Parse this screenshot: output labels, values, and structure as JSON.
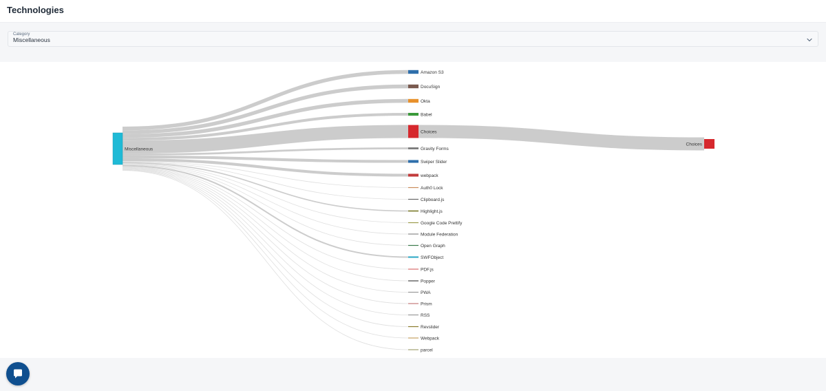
{
  "page": {
    "title": "Technologies"
  },
  "filter": {
    "label": "Category",
    "value": "Miscellaneous",
    "chevron_icon": "chevron-down-icon"
  },
  "chat": {
    "icon": "chat-bubble-icon"
  },
  "chart_data": {
    "type": "sankey",
    "source": {
      "name": "Miscellaneous",
      "color": "#1fbad6"
    },
    "middle": [
      {
        "name": "Amazon S3",
        "color": "#2f6fab",
        "weight": 4
      },
      {
        "name": "DocuSign",
        "color": "#7a5a4f",
        "weight": 4
      },
      {
        "name": "Okta",
        "color": "#e8912c",
        "weight": 4
      },
      {
        "name": "Babel",
        "color": "#3a9a3a",
        "weight": 3
      },
      {
        "name": "Choices",
        "color": "#d6282d",
        "weight": 14
      },
      {
        "name": "Gravity Forms",
        "color": "#757575",
        "weight": 2
      },
      {
        "name": "Swiper Slider",
        "color": "#2f6fab",
        "weight": 3
      },
      {
        "name": "webpack",
        "color": "#c23b3b",
        "weight": 3
      },
      {
        "name": "Auth0 Lock",
        "color": "#c98a5a",
        "weight": 0.4
      },
      {
        "name": "Clipboard.js",
        "color": "#666666",
        "weight": 0.6
      },
      {
        "name": "Highlight.js",
        "color": "#7a7a2a",
        "weight": 1.2
      },
      {
        "name": "Google Code Prettify",
        "color": "#9a9a4a",
        "weight": 0.4
      },
      {
        "name": "Module Federation",
        "color": "#888888",
        "weight": 0.4
      },
      {
        "name": "Open Graph",
        "color": "#3a7a4a",
        "weight": 0.4
      },
      {
        "name": "SWFObject",
        "color": "#2aa8c4",
        "weight": 1.5
      },
      {
        "name": "PDF.js",
        "color": "#d96a6a",
        "weight": 0.4
      },
      {
        "name": "Popper",
        "color": "#444444",
        "weight": 0.4
      },
      {
        "name": "PWA",
        "color": "#999999",
        "weight": 0.4
      },
      {
        "name": "Prism",
        "color": "#c47a7a",
        "weight": 0.4
      },
      {
        "name": "RSS",
        "color": "#999999",
        "weight": 0.4
      },
      {
        "name": "Revslider",
        "color": "#8a7a2a",
        "weight": 0.4
      },
      {
        "name": "Webpack",
        "color": "#c4a060",
        "weight": 0.4
      },
      {
        "name": "parcel",
        "color": "#a0a070",
        "weight": 0.4
      }
    ],
    "target": {
      "name": "Choices",
      "color": "#d6282d",
      "from": "Choices",
      "weight": 14
    }
  }
}
